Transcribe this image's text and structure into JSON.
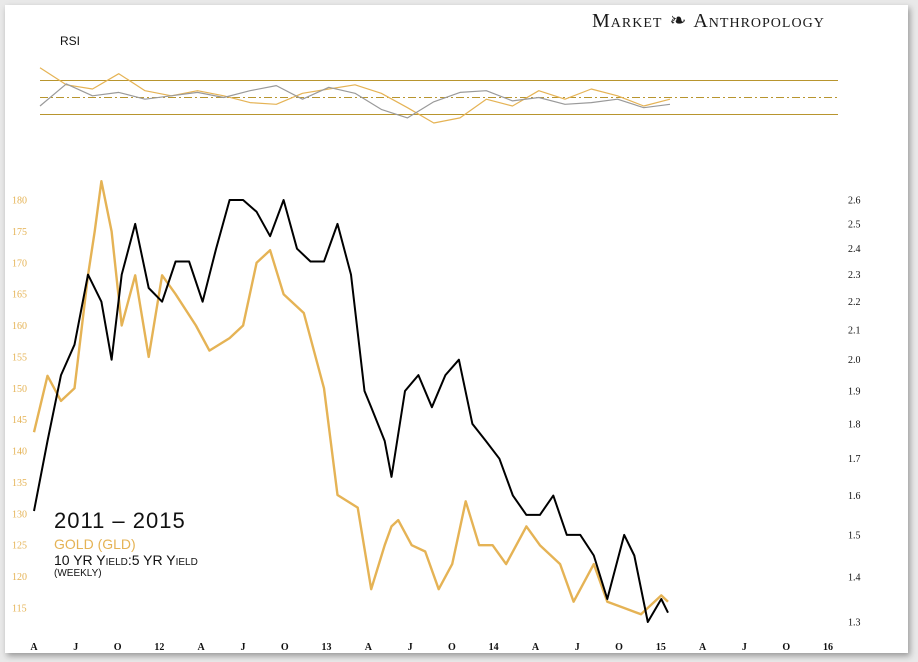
{
  "brand": {
    "left": "Market",
    "right": "Anthropology",
    "mark": "dna-icon"
  },
  "legend": {
    "period": "2011 – 2015",
    "gold": "GOLD (GLD)",
    "yield": "10 YR Yield:5 YR Yield",
    "frequency": "(WEEKLY)"
  },
  "colors": {
    "gold": "#e5b355",
    "ratio": "#000000",
    "rsi_ratio": "#9a9a9a",
    "rsi_band": "#b8952e"
  },
  "chart_data": [
    {
      "type": "line",
      "title": "RSI",
      "ylim": [
        0,
        100
      ],
      "bands": [
        70,
        50,
        30
      ],
      "x": [
        0,
        8,
        16,
        24,
        32,
        40,
        48,
        56,
        64,
        72,
        80,
        88,
        96,
        104,
        112,
        120,
        128,
        136,
        144,
        152,
        160,
        168,
        176,
        184,
        192
      ],
      "series": [
        {
          "color": "gold",
          "values": [
            85,
            65,
            60,
            78,
            58,
            52,
            58,
            52,
            44,
            42,
            55,
            60,
            65,
            55,
            38,
            20,
            26,
            48,
            40,
            58,
            48,
            60,
            52,
            40,
            48
          ]
        },
        {
          "color": "rsi_ratio",
          "values": [
            40,
            66,
            52,
            56,
            48,
            52,
            56,
            50,
            58,
            64,
            48,
            62,
            55,
            36,
            26,
            45,
            56,
            58,
            46,
            50,
            42,
            44,
            48,
            38,
            42
          ]
        }
      ]
    },
    {
      "type": "line",
      "x_tick_labels": [
        "A",
        "J",
        "O",
        "12",
        "A",
        "J",
        "O",
        "13",
        "A",
        "J",
        "O",
        "14",
        "A",
        "J",
        "O",
        "15",
        "A",
        "J",
        "O",
        "16"
      ],
      "ylim_left": [
        112,
        183
      ],
      "y_left_ticks": [
        180,
        175,
        170,
        165,
        160,
        155,
        150,
        145,
        140,
        135,
        130,
        125,
        120,
        115
      ],
      "ylim_right": [
        1.28,
        2.64
      ],
      "y_right_ticks": [
        2.6,
        2.5,
        2.4,
        2.3,
        2.2,
        2.1,
        2.0,
        1.9,
        1.8,
        1.7,
        1.6,
        1.5,
        1.4,
        1.3
      ],
      "y_right_log": true,
      "series": [
        {
          "name": "GOLD (GLD)",
          "axis": "left",
          "color": "gold",
          "x": [
            0,
            4,
            8,
            12,
            16,
            18,
            20,
            23,
            26,
            30,
            34,
            38,
            42,
            48,
            52,
            58,
            62,
            66,
            70,
            74,
            80,
            86,
            90,
            96,
            100,
            104,
            106,
            108,
            112,
            116,
            120,
            124,
            128,
            132,
            136,
            140,
            146,
            150,
            156,
            160,
            166,
            170,
            175,
            180,
            186,
            188
          ],
          "values": [
            143,
            152,
            148,
            150,
            168,
            175,
            183,
            175,
            160,
            168,
            155,
            168,
            165,
            160,
            156,
            158,
            160,
            170,
            172,
            165,
            162,
            150,
            133,
            131,
            118,
            125,
            128,
            129,
            125,
            124,
            118,
            122,
            132,
            125,
            125,
            122,
            128,
            125,
            122,
            116,
            122,
            116,
            115,
            114,
            117,
            116
          ]
        },
        {
          "name": "10 YR Yield:5 YR Yield",
          "axis": "right",
          "color": "ratio",
          "x": [
            0,
            4,
            8,
            12,
            16,
            20,
            23,
            26,
            30,
            34,
            38,
            42,
            46,
            50,
            54,
            58,
            62,
            66,
            70,
            74,
            78,
            82,
            86,
            90,
            94,
            98,
            100,
            104,
            106,
            110,
            114,
            118,
            122,
            126,
            130,
            134,
            138,
            142,
            146,
            150,
            154,
            158,
            162,
            166,
            170,
            175,
            178,
            182,
            186,
            188
          ],
          "values": [
            1.56,
            1.75,
            1.95,
            2.05,
            2.3,
            2.2,
            2.0,
            2.3,
            2.5,
            2.25,
            2.2,
            2.35,
            2.35,
            2.2,
            2.4,
            2.6,
            2.6,
            2.55,
            2.45,
            2.6,
            2.4,
            2.35,
            2.35,
            2.5,
            2.3,
            1.9,
            1.85,
            1.75,
            1.65,
            1.9,
            1.95,
            1.85,
            1.95,
            2.0,
            1.8,
            1.75,
            1.7,
            1.6,
            1.55,
            1.55,
            1.6,
            1.5,
            1.5,
            1.45,
            1.35,
            1.5,
            1.45,
            1.3,
            1.35,
            1.32
          ]
        }
      ]
    }
  ]
}
